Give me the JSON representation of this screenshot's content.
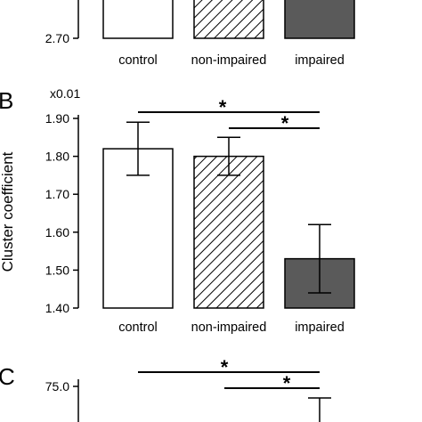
{
  "panels": [
    {
      "label": "",
      "ymin_label": "2.70",
      "categories": [
        "control",
        "non-impaired",
        "impaired"
      ]
    },
    {
      "label": "B",
      "scale_label": "x0.01",
      "ylabel": "Cluster coefficient",
      "categories": [
        "control",
        "non-impaired",
        "impaired"
      ]
    },
    {
      "label": "C",
      "ytop_label": "75.0"
    }
  ],
  "chart_data": [
    {
      "type": "bar",
      "panel": "A (partial, cropped)",
      "categories": [
        "control",
        "non-impaired",
        "impaired"
      ],
      "y_tick_labels": [
        "2.70"
      ],
      "patterns": [
        "white",
        "hatched",
        "dark-gray"
      ]
    },
    {
      "type": "bar",
      "panel": "B",
      "categories": [
        "control",
        "non-impaired",
        "impaired"
      ],
      "values": [
        1.82,
        1.8,
        1.53
      ],
      "error_low": [
        1.75,
        1.75,
        1.44
      ],
      "error_high": [
        1.89,
        1.85,
        1.62
      ],
      "ylim": [
        1.4,
        1.9
      ],
      "yticks": [
        1.4,
        1.5,
        1.6,
        1.7,
        1.8,
        1.9
      ],
      "y_tick_labels": [
        "1.40",
        "1.50",
        "1.60",
        "1.70",
        "1.80",
        "1.90"
      ],
      "scale_annotation": "x0.01",
      "ylabel": "Cluster coefficient",
      "significance": [
        {
          "from": "control",
          "to": "impaired",
          "marker": "*"
        },
        {
          "from": "non-impaired",
          "to": "impaired",
          "marker": "*"
        }
      ],
      "patterns": [
        "white",
        "hatched",
        "dark-gray"
      ],
      "colors": {
        "impaired": "#5a5a5a"
      }
    },
    {
      "type": "bar",
      "panel": "C (partial, cropped)",
      "y_tick_labels": [
        "75.0"
      ],
      "significance": [
        {
          "from": "control",
          "to": "impaired",
          "marker": "*"
        },
        {
          "from": "non-impaired",
          "to": "impaired",
          "marker": "*"
        }
      ]
    }
  ]
}
